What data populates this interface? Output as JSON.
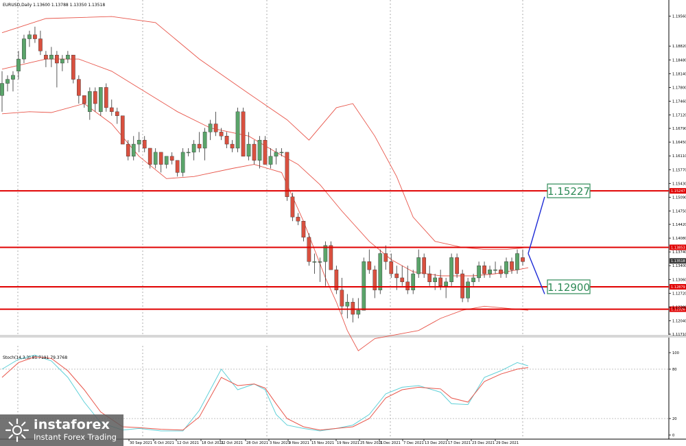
{
  "chart_data": [
    {
      "type": "candlestick",
      "symbol_header": "EURUSD,Daily  1.13600 1.13788 1.13350 1.13518",
      "ylim": [
        1.1171,
        1.1989
      ],
      "y_ticks": [
        "1.19560",
        "1.18820",
        "1.18480",
        "1.18140",
        "1.17800",
        "1.17460",
        "1.17120",
        "1.16790",
        "1.16450",
        "1.16110",
        "1.15770",
        "1.15430",
        "1.15090",
        "1.14750",
        "1.14420",
        "1.14080",
        "1.13740",
        "1.13400",
        "1.13060",
        "1.12720",
        "1.12380",
        "1.12040",
        "1.11710"
      ],
      "x_labels": [
        "30 Sep 2021",
        "6 Oct 2021",
        "12 Oct 2021",
        "18 Oct 2021",
        "22 Oct 2021",
        "28 Oct 2021",
        "3 Nov 2021",
        "9 Nov 2021",
        "15 Nov 2021",
        "19 Nov 2021",
        "25 Nov 2021",
        "1 Dec 2021",
        "7 Dec 2021",
        "13 Dec 2021",
        "17 Dec 2021",
        "23 Dec 2021",
        "29 Dec 2021"
      ],
      "current_price": "1.13518",
      "candle_colors": {
        "up": "#5aa46a",
        "down": "#d9503f"
      },
      "levels": [
        {
          "value": 1.15247,
          "tag": "1.15247",
          "label": "1.15227"
        },
        {
          "value": 1.13853,
          "tag": "1.13853"
        },
        {
          "value": 1.12879,
          "tag": "1.12879",
          "label": "1.12900"
        },
        {
          "value": 1.12326,
          "tag": "1.12326"
        }
      ],
      "candles": [
        [
          1.176,
          1.182,
          1.172,
          1.179
        ],
        [
          1.179,
          1.181,
          1.177,
          1.18
        ],
        [
          1.18,
          1.182,
          1.177,
          1.181
        ],
        [
          1.182,
          1.187,
          1.18,
          1.185
        ],
        [
          1.185,
          1.191,
          1.184,
          1.19
        ],
        [
          1.19,
          1.192,
          1.188,
          1.191
        ],
        [
          1.191,
          1.193,
          1.189,
          1.19
        ],
        [
          1.19,
          1.192,
          1.186,
          1.187
        ],
        [
          1.186,
          1.187,
          1.183,
          1.185
        ],
        [
          1.185,
          1.188,
          1.183,
          1.186
        ],
        [
          1.186,
          1.187,
          1.178,
          1.184
        ],
        [
          1.184,
          1.186,
          1.182,
          1.185
        ],
        [
          1.185,
          1.187,
          1.184,
          1.186
        ],
        [
          1.186,
          1.186,
          1.179,
          1.18
        ],
        [
          1.18,
          1.181,
          1.174,
          1.176
        ],
        [
          1.176,
          1.176,
          1.173,
          1.174
        ],
        [
          1.172,
          1.178,
          1.17,
          1.177
        ],
        [
          1.177,
          1.178,
          1.172,
          1.174
        ],
        [
          1.172,
          1.178,
          1.171,
          1.178
        ],
        [
          1.178,
          1.179,
          1.172,
          1.173
        ],
        [
          1.173,
          1.175,
          1.171,
          1.172
        ],
        [
          1.172,
          1.173,
          1.169,
          1.171
        ],
        [
          1.171,
          1.171,
          1.164,
          1.164
        ],
        [
          1.164,
          1.165,
          1.16,
          1.161
        ],
        [
          1.161,
          1.166,
          1.16,
          1.164
        ],
        [
          1.164,
          1.167,
          1.162,
          1.165
        ],
        [
          1.165,
          1.166,
          1.162,
          1.163
        ],
        [
          1.163,
          1.163,
          1.158,
          1.159
        ],
        [
          1.159,
          1.163,
          1.158,
          1.162
        ],
        [
          1.162,
          1.162,
          1.157,
          1.159
        ],
        [
          1.159,
          1.161,
          1.158,
          1.161
        ],
        [
          1.161,
          1.162,
          1.159,
          1.16
        ],
        [
          1.16,
          1.16,
          1.156,
          1.157
        ],
        [
          1.157,
          1.163,
          1.156,
          1.162
        ],
        [
          1.162,
          1.163,
          1.161,
          1.162
        ],
        [
          1.162,
          1.165,
          1.16,
          1.164
        ],
        [
          1.164,
          1.167,
          1.162,
          1.163
        ],
        [
          1.163,
          1.168,
          1.16,
          1.167
        ],
        [
          1.167,
          1.17,
          1.165,
          1.169
        ],
        [
          1.169,
          1.172,
          1.166,
          1.167
        ],
        [
          1.167,
          1.168,
          1.165,
          1.166
        ],
        [
          1.166,
          1.167,
          1.163,
          1.164
        ],
        [
          1.164,
          1.165,
          1.162,
          1.163
        ],
        [
          1.163,
          1.173,
          1.162,
          1.172
        ],
        [
          1.172,
          1.173,
          1.161,
          1.161
        ],
        [
          1.161,
          1.167,
          1.16,
          1.164
        ],
        [
          1.164,
          1.165,
          1.159,
          1.16
        ],
        [
          1.16,
          1.166,
          1.158,
          1.165
        ],
        [
          1.165,
          1.166,
          1.159,
          1.159
        ],
        [
          1.159,
          1.163,
          1.158,
          1.161
        ],
        [
          1.161,
          1.163,
          1.159,
          1.162
        ],
        [
          1.162,
          1.163,
          1.161,
          1.162
        ],
        [
          1.162,
          1.162,
          1.15,
          1.151
        ],
        [
          1.151,
          1.152,
          1.145,
          1.146
        ],
        [
          1.146,
          1.147,
          1.144,
          1.145
        ],
        [
          1.145,
          1.145,
          1.14,
          1.141
        ],
        [
          1.141,
          1.142,
          1.134,
          1.135
        ],
        [
          1.135,
          1.137,
          1.132,
          1.135
        ],
        [
          1.135,
          1.136,
          1.13,
          1.135
        ],
        [
          1.135,
          1.14,
          1.129,
          1.139
        ],
        [
          1.139,
          1.14,
          1.133,
          1.133
        ],
        [
          1.133,
          1.134,
          1.127,
          1.128
        ],
        [
          1.128,
          1.131,
          1.122,
          1.124
        ],
        [
          1.124,
          1.127,
          1.121,
          1.125
        ],
        [
          1.125,
          1.126,
          1.12,
          1.122
        ],
        [
          1.122,
          1.126,
          1.121,
          1.123
        ],
        [
          1.123,
          1.136,
          1.123,
          1.135
        ],
        [
          1.135,
          1.138,
          1.132,
          1.133
        ],
        [
          1.133,
          1.134,
          1.126,
          1.128
        ],
        [
          1.128,
          1.138,
          1.127,
          1.137
        ],
        [
          1.137,
          1.139,
          1.133,
          1.135
        ],
        [
          1.135,
          1.137,
          1.131,
          1.132
        ],
        [
          1.132,
          1.134,
          1.128,
          1.131
        ],
        [
          1.131,
          1.134,
          1.129,
          1.13
        ],
        [
          1.13,
          1.134,
          1.127,
          1.128
        ],
        [
          1.128,
          1.133,
          1.127,
          1.132
        ],
        [
          1.132,
          1.138,
          1.131,
          1.136
        ],
        [
          1.136,
          1.137,
          1.131,
          1.132
        ],
        [
          1.132,
          1.134,
          1.129,
          1.13
        ],
        [
          1.13,
          1.132,
          1.128,
          1.131
        ],
        [
          1.131,
          1.133,
          1.128,
          1.129
        ],
        [
          1.129,
          1.131,
          1.126,
          1.13
        ],
        [
          1.13,
          1.137,
          1.129,
          1.136
        ],
        [
          1.136,
          1.137,
          1.131,
          1.132
        ],
        [
          1.132,
          1.133,
          1.125,
          1.126
        ],
        [
          1.126,
          1.131,
          1.125,
          1.13
        ],
        [
          1.13,
          1.132,
          1.129,
          1.131
        ],
        [
          1.131,
          1.135,
          1.13,
          1.134
        ],
        [
          1.134,
          1.135,
          1.131,
          1.132
        ],
        [
          1.132,
          1.134,
          1.131,
          1.133
        ],
        [
          1.133,
          1.135,
          1.132,
          1.133
        ],
        [
          1.133,
          1.134,
          1.131,
          1.132
        ],
        [
          1.132,
          1.136,
          1.131,
          1.135
        ],
        [
          1.135,
          1.136,
          1.132,
          1.133
        ],
        [
          1.133,
          1.138,
          1.132,
          1.137
        ],
        [
          1.136,
          1.138,
          1.134,
          1.135
        ]
      ],
      "bollinger": {
        "upper": [
          [
            0,
            1.1915
          ],
          [
            8,
            1.195
          ],
          [
            20,
            1.1955
          ],
          [
            28,
            1.194
          ],
          [
            36,
            1.185
          ],
          [
            45,
            1.1765
          ],
          [
            52,
            1.17
          ],
          [
            56,
            1.165
          ],
          [
            61,
            1.173
          ],
          [
            64,
            1.174
          ],
          [
            68,
            1.166
          ],
          [
            72,
            1.156
          ],
          [
            75,
            1.146
          ],
          [
            79,
            1.14
          ],
          [
            84,
            1.1385
          ],
          [
            88,
            1.138
          ],
          [
            92,
            1.138
          ],
          [
            96,
            1.1385
          ]
        ],
        "middle": [
          [
            0,
            1.1825
          ],
          [
            8,
            1.185
          ],
          [
            14,
            1.185
          ],
          [
            20,
            1.182
          ],
          [
            26,
            1.177
          ],
          [
            32,
            1.172
          ],
          [
            38,
            1.168
          ],
          [
            45,
            1.166
          ],
          [
            50,
            1.162
          ],
          [
            54,
            1.159
          ],
          [
            58,
            1.154
          ],
          [
            62,
            1.1475
          ],
          [
            67,
            1.14
          ],
          [
            71,
            1.1355
          ],
          [
            75,
            1.1325
          ],
          [
            80,
            1.1315
          ],
          [
            86,
            1.1315
          ],
          [
            90,
            1.132
          ],
          [
            96,
            1.1335
          ]
        ],
        "lower": [
          [
            0,
            1.1715
          ],
          [
            5,
            1.172
          ],
          [
            9,
            1.1718
          ],
          [
            15,
            1.174
          ],
          [
            20,
            1.169
          ],
          [
            25,
            1.161
          ],
          [
            30,
            1.1555
          ],
          [
            35,
            1.156
          ],
          [
            42,
            1.158
          ],
          [
            46,
            1.159
          ],
          [
            51,
            1.157
          ],
          [
            55,
            1.145
          ],
          [
            59,
            1.131
          ],
          [
            61,
            1.125
          ],
          [
            63,
            1.118
          ],
          [
            65,
            1.113
          ],
          [
            68,
            1.116
          ],
          [
            72,
            1.117
          ],
          [
            76,
            1.118
          ],
          [
            80,
            1.121
          ],
          [
            84,
            1.123
          ],
          [
            88,
            1.124
          ],
          [
            92,
            1.1235
          ],
          [
            96,
            1.123
          ]
        ]
      },
      "projection_path": {
        "from": [
          96,
          1.137
        ],
        "up_to": [
          99,
          1.151
        ],
        "down_to": [
          99,
          1.127
        ]
      }
    },
    {
      "type": "line",
      "header": "Stoch(14,3,3) 81.7191 79.3768",
      "ylim": [
        0,
        100
      ],
      "y_ticks": [
        "100",
        "80",
        "20",
        "0"
      ],
      "levels": [
        80,
        20
      ],
      "series": [
        {
          "values": [
            [
              0,
              80
            ],
            [
              3,
              92
            ],
            [
              6,
              97
            ],
            [
              9,
              90
            ],
            [
              12,
              70
            ],
            [
              15,
              40
            ],
            [
              18,
              15
            ],
            [
              22,
              6
            ],
            [
              25,
              8
            ],
            [
              29,
              5
            ],
            [
              33,
              5
            ],
            [
              36,
              30
            ],
            [
              40,
              80
            ],
            [
              43,
              55
            ],
            [
              46,
              62
            ],
            [
              48,
              55
            ],
            [
              50,
              25
            ],
            [
              52,
              12
            ],
            [
              55,
              8
            ],
            [
              58,
              5
            ],
            [
              61,
              8
            ],
            [
              64,
              12
            ],
            [
              67,
              25
            ],
            [
              70,
              50
            ],
            [
              73,
              58
            ],
            [
              76,
              60
            ],
            [
              80,
              52
            ],
            [
              82,
              38
            ],
            [
              85,
              37
            ],
            [
              88,
              70
            ],
            [
              91,
              78
            ],
            [
              94,
              88
            ],
            [
              96,
              84
            ]
          ],
          "color": "#5fd0d8"
        },
        {
          "values": [
            [
              0,
              70
            ],
            [
              3,
              88
            ],
            [
              6,
              95
            ],
            [
              9,
              93
            ],
            [
              12,
              78
            ],
            [
              15,
              55
            ],
            [
              18,
              28
            ],
            [
              22,
              10
            ],
            [
              25,
              9
            ],
            [
              29,
              7
            ],
            [
              33,
              6
            ],
            [
              36,
              22
            ],
            [
              40,
              70
            ],
            [
              43,
              60
            ],
            [
              46,
              62
            ],
            [
              48,
              57
            ],
            [
              50,
              38
            ],
            [
              52,
              20
            ],
            [
              55,
              10
            ],
            [
              58,
              6
            ],
            [
              61,
              8
            ],
            [
              64,
              10
            ],
            [
              67,
              20
            ],
            [
              70,
              45
            ],
            [
              73,
              55
            ],
            [
              76,
              58
            ],
            [
              80,
              56
            ],
            [
              82,
              45
            ],
            [
              85,
              40
            ],
            [
              88,
              65
            ],
            [
              91,
              74
            ],
            [
              94,
              80
            ],
            [
              96,
              82
            ]
          ],
          "color": "#e8554a"
        }
      ]
    }
  ],
  "brand": {
    "name": "instaforex",
    "tagline": "Instant Forex Trading"
  }
}
